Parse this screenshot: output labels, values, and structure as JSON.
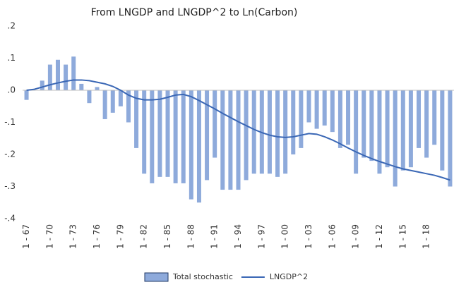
{
  "chart_data": {
    "type": "bar",
    "title": "From LNGDP and LNGDP^2 to Ln(Carbon)",
    "categories": [
      "1 - 67",
      null,
      null,
      "1 - 70",
      null,
      null,
      "1 - 73",
      null,
      null,
      "1 - 76",
      null,
      null,
      "1 - 79",
      null,
      null,
      "1 - 82",
      null,
      null,
      "1 - 85",
      null,
      null,
      "1 - 88",
      null,
      null,
      "1 - 91",
      null,
      null,
      "1 - 94",
      null,
      null,
      "1 - 97",
      null,
      null,
      "1 - 00",
      null,
      null,
      "1 - 03",
      null,
      null,
      "1 - 06",
      null,
      null,
      "1 - 09",
      null,
      null,
      "1 - 12",
      null,
      null,
      "1 - 15",
      null,
      null,
      "1 - 18",
      null,
      null,
      null
    ],
    "series": [
      {
        "name": "Total stochastic",
        "type": "bar",
        "color": "#8eaadb",
        "values": [
          -0.03,
          0.0,
          0.03,
          0.08,
          0.095,
          0.08,
          0.105,
          0.02,
          -0.04,
          0.01,
          -0.09,
          -0.07,
          -0.05,
          -0.1,
          -0.18,
          -0.26,
          -0.29,
          -0.27,
          -0.27,
          -0.29,
          -0.29,
          -0.34,
          -0.35,
          -0.28,
          -0.21,
          -0.31,
          -0.31,
          -0.31,
          -0.28,
          -0.26,
          -0.26,
          -0.26,
          -0.27,
          -0.26,
          -0.2,
          -0.18,
          -0.1,
          -0.12,
          -0.11,
          -0.13,
          -0.18,
          -0.17,
          -0.26,
          -0.21,
          -0.22,
          -0.26,
          -0.24,
          -0.3,
          -0.25,
          -0.24,
          -0.18,
          -0.21,
          -0.17,
          -0.25,
          -0.3
        ]
      },
      {
        "name": "LNGDP^2",
        "type": "line",
        "color": "#3a67b5",
        "values": [
          0.0,
          0.003,
          0.01,
          0.017,
          0.023,
          0.028,
          0.032,
          0.032,
          0.03,
          0.025,
          0.02,
          0.012,
          0.0,
          -0.015,
          -0.025,
          -0.03,
          -0.03,
          -0.028,
          -0.022,
          -0.015,
          -0.013,
          -0.02,
          -0.032,
          -0.045,
          -0.058,
          -0.072,
          -0.085,
          -0.098,
          -0.11,
          -0.122,
          -0.132,
          -0.14,
          -0.145,
          -0.147,
          -0.145,
          -0.14,
          -0.135,
          -0.137,
          -0.145,
          -0.155,
          -0.167,
          -0.18,
          -0.192,
          -0.203,
          -0.213,
          -0.222,
          -0.23,
          -0.238,
          -0.245,
          -0.25,
          -0.255,
          -0.26,
          -0.265,
          -0.272,
          -0.28
        ]
      }
    ],
    "ylim": [
      -0.4,
      0.2
    ],
    "yticks": [
      {
        "value": 0.2,
        "label": ".2"
      },
      {
        "value": 0.1,
        "label": ".1"
      },
      {
        "value": 0,
        "label": ".0"
      },
      {
        "value": -0.1,
        "label": "-.1"
      },
      {
        "value": -0.2,
        "label": "-.2"
      },
      {
        "value": -0.3,
        "label": "-.3"
      },
      {
        "value": -0.4,
        "label": "-.4"
      }
    ]
  }
}
